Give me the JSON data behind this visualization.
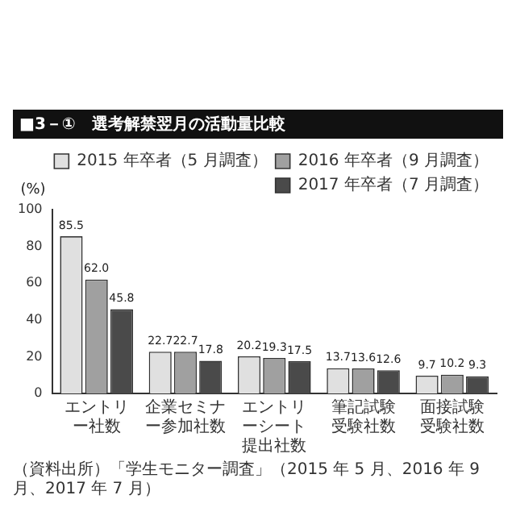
{
  "chart_data": {
    "type": "bar",
    "title": "■3－①　選考解禁翌月の活動量比較",
    "ylabel": "(%)",
    "categories": [
      "エントリー社数",
      "企業セミナー参加社数",
      "エントリーシート提出社数",
      "筆記試験受験社数",
      "面接試験受験社数"
    ],
    "series": [
      {
        "name": "2015 年卒者（5 月調査）",
        "color": "#e0e0e0",
        "values": [
          85.5,
          22.7,
          20.2,
          13.7,
          9.7
        ],
        "value_labels": [
          "85.5",
          "22.7",
          "20.2",
          "13.7",
          "9.7"
        ]
      },
      {
        "name": "2016 年卒者（9 月調査）",
        "color": "#a0a0a0",
        "values": [
          62.0,
          22.7,
          19.3,
          13.6,
          10.2
        ],
        "value_labels": [
          "62.0",
          "22.7",
          "19.3",
          "13.6",
          "10.2"
        ]
      },
      {
        "name": "2017 年卒者（7 月調査）",
        "color": "#4a4a4a",
        "values": [
          45.8,
          17.8,
          17.5,
          12.6,
          9.3
        ],
        "value_labels": [
          "45.8",
          "17.8",
          "17.5",
          "12.6",
          "9.3"
        ]
      }
    ],
    "ylim": [
      0,
      100
    ],
    "yticks": [
      0,
      20,
      40,
      60,
      80,
      100
    ],
    "grid": false,
    "legend": "top right",
    "annotations": [
      "（資料出所）「学生モニター調査」（2015 年 5 月、2016 年 9 月、2017 年 7 月）"
    ]
  }
}
